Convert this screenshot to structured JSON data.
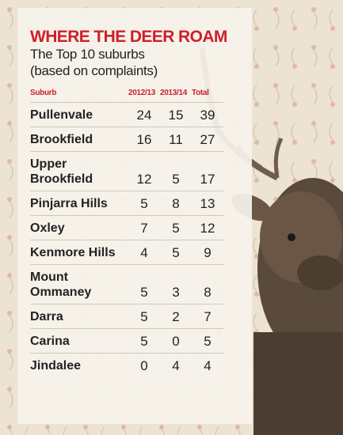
{
  "title": "WHERE THE DEER ROAM",
  "subtitle": [
    "The Top 10 suburbs",
    "(based on complaints)"
  ],
  "table": {
    "header": [
      "Suburb",
      "2012/13",
      "2013/14",
      "Total"
    ],
    "rows": [
      [
        "Pullenvale",
        24,
        15,
        39
      ],
      [
        "Brookfield",
        16,
        11,
        27
      ],
      [
        "Upper Brookfield",
        12,
        5,
        17
      ],
      [
        "Pinjarra Hills",
        5,
        8,
        13
      ],
      [
        "Oxley",
        7,
        5,
        12
      ],
      [
        "Kenmore Hills",
        4,
        5,
        9
      ],
      [
        "Mount Ommaney",
        5,
        3,
        8
      ],
      [
        "Darra",
        5,
        2,
        7
      ],
      [
        "Carina",
        5,
        0,
        5
      ],
      [
        "Jindalee",
        0,
        4,
        4
      ]
    ]
  }
}
